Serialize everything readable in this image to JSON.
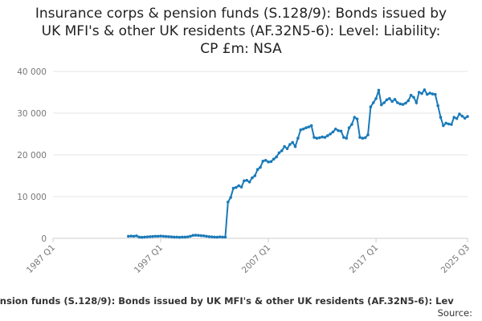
{
  "chart_data": {
    "type": "line",
    "title": [
      "Insurance corps & pension funds (S.128/9): Bonds issued by",
      "UK MFI's & other UK residents (AF.32N5-6): Level: Liability:",
      "CP £m: NSA"
    ],
    "footer": "ension funds (S.128/9): Bonds issued by UK MFI's & other UK residents (AF.32N5-6): Lev",
    "source": "Source: ",
    "xlim": [
      1987,
      2025.5
    ],
    "xticks": [
      {
        "value": 1987,
        "label": "1987 Q1"
      },
      {
        "value": 1997,
        "label": "1997 Q1"
      },
      {
        "value": 2007,
        "label": "2007 Q1"
      },
      {
        "value": 2017,
        "label": "2017 Q1"
      },
      {
        "value": 2025.5,
        "label": "2025 Q3"
      }
    ],
    "ylim": [
      0,
      40000
    ],
    "yticks": [
      0,
      {
        "value": 10000,
        "label": "10 000"
      },
      {
        "value": 20000,
        "label": "20 000"
      },
      {
        "value": 30000,
        "label": "30 000"
      },
      {
        "value": 40000,
        "label": "40 000"
      }
    ],
    "x": [
      1994,
      1994.25,
      1994.5,
      1994.75,
      1995,
      1995.25,
      1995.5,
      1995.75,
      1996,
      1996.25,
      1996.5,
      1996.75,
      1997,
      1997.25,
      1997.5,
      1997.75,
      1998,
      1998.25,
      1998.5,
      1998.75,
      1999,
      1999.25,
      1999.5,
      1999.75,
      2000,
      2000.25,
      2000.5,
      2000.75,
      2001,
      2001.25,
      2001.5,
      2001.75,
      2002,
      2002.25,
      2002.5,
      2002.75,
      2003,
      2003.25,
      2003.5,
      2003.75,
      2004,
      2004.25,
      2004.5,
      2004.75,
      2005,
      2005.25,
      2005.5,
      2005.75,
      2006,
      2006.25,
      2006.5,
      2006.75,
      2007,
      2007.25,
      2007.5,
      2007.75,
      2008,
      2008.25,
      2008.5,
      2008.75,
      2009,
      2009.25,
      2009.5,
      2009.75,
      2010,
      2010.25,
      2010.5,
      2010.75,
      2011,
      2011.25,
      2011.5,
      2011.75,
      2012,
      2012.25,
      2012.5,
      2012.75,
      2013,
      2013.25,
      2013.5,
      2013.75,
      2014,
      2014.25,
      2014.5,
      2014.75,
      2015,
      2015.25,
      2015.5,
      2015.75,
      2016,
      2016.25,
      2016.5,
      2016.75,
      2017,
      2017.25,
      2017.5,
      2017.75,
      2018,
      2018.25,
      2018.5,
      2018.75,
      2019,
      2019.25,
      2019.5,
      2019.75,
      2020,
      2020.25,
      2020.5,
      2020.75,
      2021,
      2021.25,
      2021.5,
      2021.75,
      2022,
      2022.25,
      2022.5,
      2022.75,
      2023,
      2023.25,
      2023.5,
      2023.75,
      2024,
      2024.25,
      2024.5,
      2024.75,
      2025,
      2025.25,
      2025.5
    ],
    "series": [
      {
        "name": "CP £m: NSA",
        "color": "#1a7ab8",
        "values": [
          500,
          550,
          500,
          600,
          300,
          250,
          300,
          350,
          400,
          450,
          500,
          500,
          550,
          500,
          450,
          400,
          350,
          300,
          300,
          250,
          300,
          300,
          350,
          500,
          700,
          750,
          700,
          650,
          600,
          500,
          400,
          350,
          300,
          280,
          350,
          300,
          300,
          8700,
          9800,
          12000,
          12200,
          12600,
          12300,
          13800,
          13900,
          13500,
          14500,
          15000,
          16500,
          17000,
          18500,
          18700,
          18300,
          18400,
          19000,
          19500,
          20500,
          21000,
          22000,
          21500,
          22500,
          23000,
          22000,
          24000,
          26000,
          26200,
          26500,
          26700,
          27000,
          24200,
          24000,
          24100,
          24300,
          24200,
          24600,
          25000,
          25500,
          26200,
          25800,
          25700,
          24200,
          24000,
          26500,
          27300,
          29000,
          28600,
          24200,
          24000,
          24100,
          24800,
          31500,
          32500,
          33500,
          35500,
          32000,
          32500,
          33200,
          33500,
          32800,
          33300,
          32500,
          32200,
          32100,
          32400,
          33000,
          34300,
          33800,
          32500,
          35000,
          34700,
          35600,
          34500,
          34800,
          34600,
          34500,
          31800,
          29000,
          27000,
          27600,
          27400,
          27300,
          29000,
          28700,
          29800,
          29300,
          28800,
          29200
        ]
      }
    ]
  }
}
